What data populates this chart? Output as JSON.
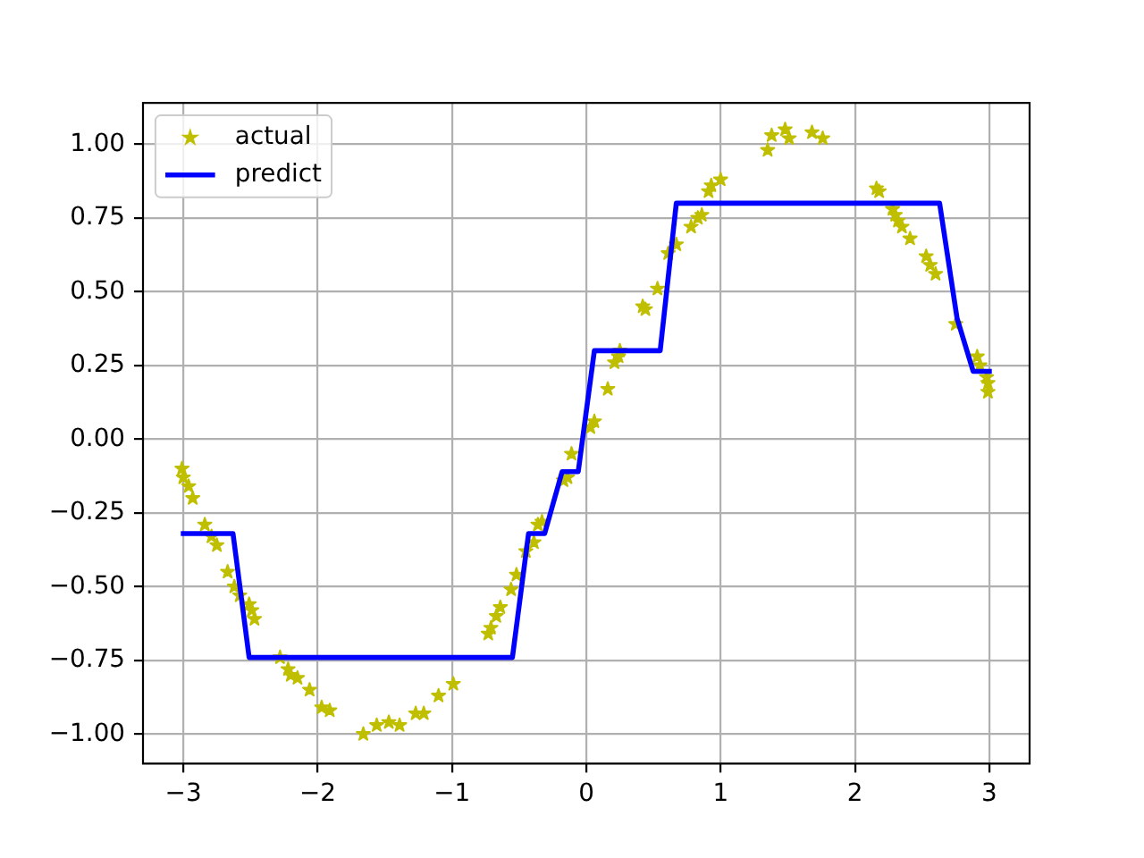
{
  "chart_data": {
    "type": "scatter",
    "xlim": [
      -3.3,
      3.3
    ],
    "ylim": [
      -1.1,
      1.14
    ],
    "xticks": [
      {
        "value": -3,
        "label": "−3"
      },
      {
        "value": -2,
        "label": "−2"
      },
      {
        "value": -1,
        "label": "−1"
      },
      0,
      1,
      2,
      3
    ],
    "yticks": [
      {
        "value": -1,
        "label": "−1.00"
      },
      {
        "value": -0.75,
        "label": "−0.75"
      },
      {
        "value": -0.5,
        "label": "−0.50"
      },
      {
        "value": -0.25,
        "label": "−0.25"
      },
      {
        "value": 0,
        "label": "0.00"
      },
      {
        "value": 0.25,
        "label": "0.25"
      },
      {
        "value": 0.5,
        "label": "0.50"
      },
      {
        "value": 0.75,
        "label": "0.75"
      },
      {
        "value": 1,
        "label": "1.00"
      }
    ],
    "grid": true,
    "legend": "top left",
    "series": [
      {
        "name": "actual",
        "color": "#bfbf00",
        "marker": "star",
        "x": [
          -3.01,
          -3.0,
          -2.96,
          -2.93,
          -2.84,
          -2.79,
          -2.75,
          -2.67,
          -2.62,
          -2.58,
          -2.51,
          -2.49,
          -2.47,
          -2.28,
          -2.22,
          -2.2,
          -2.15,
          -2.06,
          -1.97,
          -1.91,
          -1.66,
          -1.56,
          -1.47,
          -1.39,
          -1.27,
          -1.21,
          -1.1,
          -0.99,
          -0.73,
          -0.71,
          -0.67,
          -0.64,
          -0.56,
          -0.52,
          -0.45,
          -0.39,
          -0.36,
          -0.33,
          -0.17,
          -0.14,
          -0.11,
          0.03,
          0.06,
          0.16,
          0.21,
          0.24,
          0.25,
          0.42,
          0.44,
          0.53,
          0.61,
          0.67,
          0.78,
          0.83,
          0.86,
          0.91,
          0.93,
          1.0,
          1.35,
          1.38,
          1.48,
          1.51,
          1.68,
          1.76,
          2.16,
          2.18,
          2.28,
          2.3,
          2.32,
          2.35,
          2.41,
          2.53,
          2.56,
          2.6,
          2.75,
          2.91,
          2.93,
          2.98,
          2.99,
          2.99
        ],
        "values": [
          -0.1,
          -0.13,
          -0.16,
          -0.2,
          -0.29,
          -0.33,
          -0.36,
          -0.45,
          -0.5,
          -0.53,
          -0.56,
          -0.58,
          -0.61,
          -0.74,
          -0.78,
          -0.8,
          -0.81,
          -0.85,
          -0.91,
          -0.92,
          -1.0,
          -0.97,
          -0.96,
          -0.97,
          -0.93,
          -0.93,
          -0.87,
          -0.83,
          -0.66,
          -0.64,
          -0.6,
          -0.57,
          -0.51,
          -0.46,
          -0.38,
          -0.35,
          -0.29,
          -0.28,
          -0.14,
          -0.13,
          -0.05,
          0.04,
          0.06,
          0.17,
          0.26,
          0.28,
          0.3,
          0.45,
          0.44,
          0.51,
          0.63,
          0.66,
          0.72,
          0.75,
          0.76,
          0.84,
          0.86,
          0.88,
          0.98,
          1.03,
          1.05,
          1.02,
          1.04,
          1.02,
          0.85,
          0.84,
          0.78,
          0.76,
          0.74,
          0.72,
          0.68,
          0.62,
          0.59,
          0.56,
          0.39,
          0.28,
          0.25,
          0.21,
          0.19,
          0.16
        ]
      },
      {
        "name": "predict",
        "type": "line",
        "color": "#0000ff",
        "x": [
          -3,
          -2.63,
          -2.51,
          -0.55,
          -0.43,
          -0.31,
          -0.18,
          -0.06,
          0.06,
          0.55,
          0.67,
          2.63,
          2.76,
          2.88,
          3
        ],
        "values": [
          -0.32,
          -0.32,
          -0.74,
          -0.74,
          -0.32,
          -0.32,
          -0.11,
          -0.11,
          0.3,
          0.3,
          0.8,
          0.8,
          0.41,
          0.23,
          0.23
        ]
      }
    ]
  }
}
